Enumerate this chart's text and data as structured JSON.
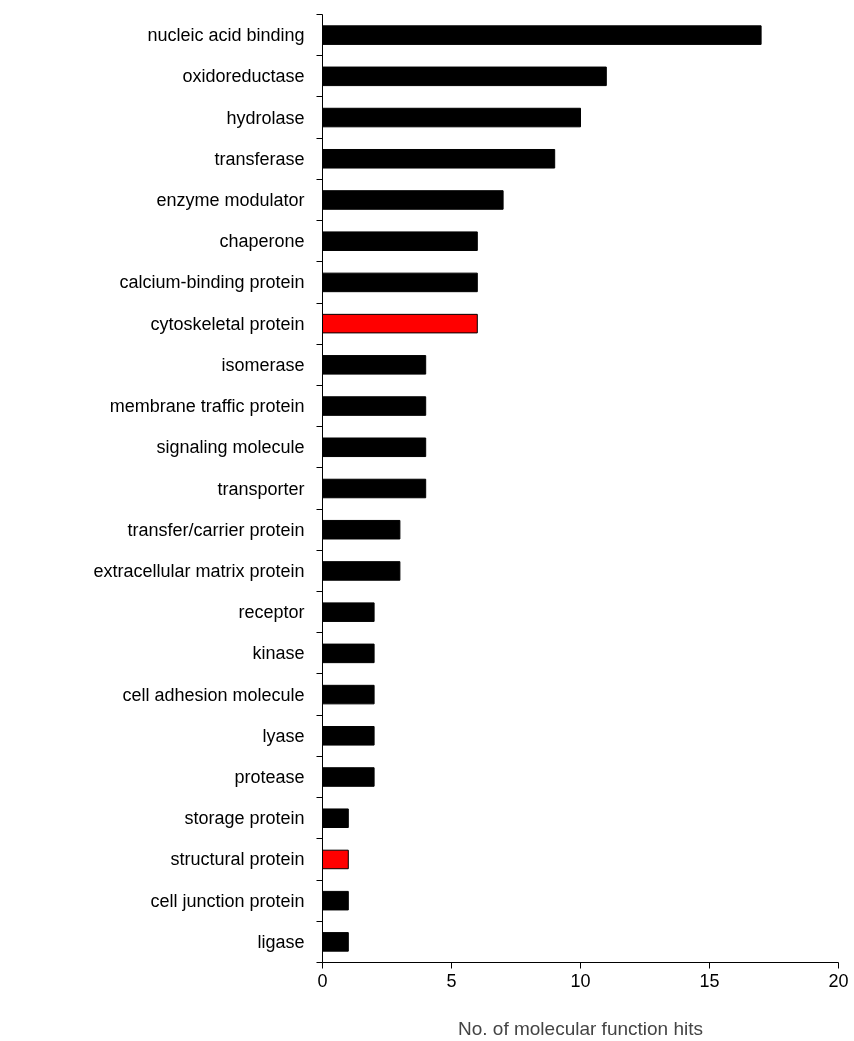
{
  "chart_data": {
    "type": "bar",
    "orientation": "horizontal",
    "xlabel": "No. of molecular function hits",
    "categories": [
      "nucleic acid binding",
      "oxidoreductase",
      "hydrolase",
      "transferase",
      "enzyme modulator",
      "chaperone",
      "calcium-binding protein",
      "cytoskeletal protein",
      "isomerase",
      "membrane traffic protein",
      "signaling molecule",
      "transporter",
      "transfer/carrier protein",
      "extracellular matrix protein",
      "receptor",
      "kinase",
      "cell adhesion molecule",
      "lyase",
      "protease",
      "storage protein",
      "structural protein",
      "cell junction protein",
      "ligase"
    ],
    "values": [
      17,
      11,
      10,
      9,
      7,
      6,
      6,
      6,
      4,
      4,
      4,
      4,
      3,
      3,
      2,
      2,
      2,
      2,
      2,
      1,
      1,
      1,
      1
    ],
    "colors": [
      "#000000",
      "#000000",
      "#000000",
      "#000000",
      "#000000",
      "#000000",
      "#000000",
      "#ff0000",
      "#000000",
      "#000000",
      "#000000",
      "#000000",
      "#000000",
      "#000000",
      "#000000",
      "#000000",
      "#000000",
      "#000000",
      "#000000",
      "#000000",
      "#ff0000",
      "#000000",
      "#000000"
    ],
    "xlim": [
      0,
      20
    ],
    "xticks": [
      0,
      5,
      10,
      15,
      20
    ],
    "grid": false
  }
}
